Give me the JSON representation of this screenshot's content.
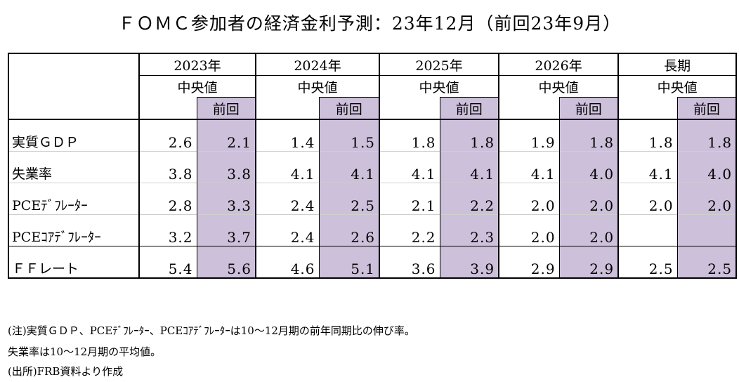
{
  "title": "ＦＯＭＣ参加者の経済金利予測：23年12月（前回23年9月）",
  "years": [
    "2023年",
    "2024年",
    "2025年",
    "2026年",
    "長期"
  ],
  "median_label": "中央値",
  "prev_label": "前回",
  "rows": [
    {
      "label": "実質ＧＤＰ",
      "cells": [
        [
          "2.6",
          "2.1"
        ],
        [
          "1.4",
          "1.5"
        ],
        [
          "1.8",
          "1.8"
        ],
        [
          "1.9",
          "1.8"
        ],
        [
          "1.8",
          "1.8"
        ]
      ]
    },
    {
      "label": "失業率",
      "cells": [
        [
          "3.8",
          "3.8"
        ],
        [
          "4.1",
          "4.1"
        ],
        [
          "4.1",
          "4.1"
        ],
        [
          "4.1",
          "4.0"
        ],
        [
          "4.1",
          "4.0"
        ]
      ]
    },
    {
      "label": "PCEﾃﾞﾌﾚｰﾀｰ",
      "cells": [
        [
          "2.8",
          "3.3"
        ],
        [
          "2.4",
          "2.5"
        ],
        [
          "2.1",
          "2.2"
        ],
        [
          "2.0",
          "2.0"
        ],
        [
          "2.0",
          "2.0"
        ]
      ]
    },
    {
      "label": "PCEｺｱﾃﾞﾌﾚｰﾀｰ",
      "cells": [
        [
          "3.2",
          "3.7"
        ],
        [
          "2.4",
          "2.6"
        ],
        [
          "2.2",
          "2.3"
        ],
        [
          "2.0",
          "2.0"
        ],
        [
          "",
          ""
        ]
      ]
    },
    {
      "label": "ＦＦレート",
      "cells": [
        [
          "5.4",
          "5.6"
        ],
        [
          "4.6",
          "5.1"
        ],
        [
          "3.6",
          "3.9"
        ],
        [
          "2.9",
          "2.9"
        ],
        [
          "2.5",
          "2.5"
        ]
      ]
    }
  ],
  "notes": [
    "(注)実質ＧＤＰ、PCEﾃﾞﾌﾚｰﾀｰ、PCEｺｱﾃﾞﾌﾚｰﾀｰは10～12月期の前年同期比の伸び率。",
    "失業率は10～12月期の平均値。",
    "(出所)FRB資料より作成"
  ]
}
